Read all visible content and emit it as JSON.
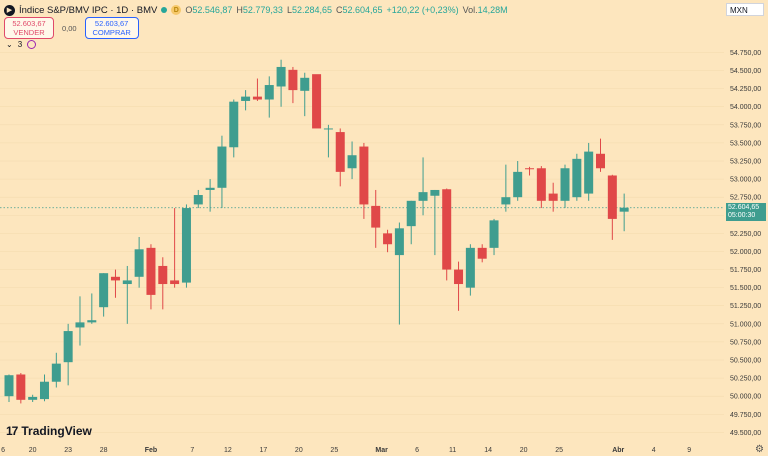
{
  "header": {
    "logo_glyph": "▶",
    "title": "Índice S&P/BMV IPC · 1D · BMV",
    "d_badge": "D",
    "ohlc": [
      {
        "label": "O",
        "value": "52.546,87"
      },
      {
        "label": "H",
        "value": "52.779,33"
      },
      {
        "label": "L",
        "value": "52.284,65"
      },
      {
        "label": "C",
        "value": "52.604,65"
      }
    ],
    "change": "+120,22 (+0,23%)",
    "volume_label": "Vol.",
    "volume_value": "14,28M"
  },
  "trade": {
    "sell_price": "52.603,67",
    "sell_label": "VENDER",
    "spread": "0,00",
    "buy_price": "52.603,67",
    "buy_label": "COMPRAR"
  },
  "indicators": {
    "chevron": "⌄",
    "count": "3"
  },
  "currency": "MXN",
  "branding": {
    "mark": "17",
    "name": "TradingView"
  },
  "settings_icon": "⚙",
  "colors": {
    "up": "#3f9d8f",
    "down": "#e04848",
    "background": "#fde6be",
    "last_price": "#3f9d8f"
  },
  "chart_data": {
    "type": "candlestick",
    "y_axis_labels": [
      "54.750,00",
      "54.500,00",
      "54.250,00",
      "54.000,00",
      "53.750,00",
      "53.500,00",
      "53.250,00",
      "53.000,00",
      "52.750,00",
      "52.500,00",
      "52.250,00",
      "52.000,00",
      "51.750,00",
      "51.500,00",
      "51.250,00",
      "51.000,00",
      "50.750,00",
      "50.500,00",
      "50.250,00",
      "50.000,00",
      "49.750,00",
      "49.500,00"
    ],
    "ylim": [
      49450,
      54950
    ],
    "x_tick_labels": [
      {
        "label": "6",
        "pos": -0.5
      },
      {
        "label": "20",
        "pos": 2
      },
      {
        "label": "23",
        "pos": 5
      },
      {
        "label": "28",
        "pos": 8
      },
      {
        "label": "Feb",
        "pos": 12
      },
      {
        "label": "7",
        "pos": 15.5
      },
      {
        "label": "12",
        "pos": 18.5
      },
      {
        "label": "17",
        "pos": 21.5
      },
      {
        "label": "20",
        "pos": 24.5
      },
      {
        "label": "25",
        "pos": 27.5
      },
      {
        "label": "Mar",
        "pos": 31.5
      },
      {
        "label": "6",
        "pos": 34.5
      },
      {
        "label": "11",
        "pos": 37.5
      },
      {
        "label": "14",
        "pos": 40.5
      },
      {
        "label": "20",
        "pos": 43.5
      },
      {
        "label": "25",
        "pos": 46.5
      },
      {
        "label": "Abr",
        "pos": 51.5
      },
      {
        "label": "4",
        "pos": 54.5
      },
      {
        "label": "9",
        "pos": 57.5
      }
    ],
    "last_price": {
      "value": 52604.65,
      "label": "52.604,65",
      "countdown": "05:00:30"
    },
    "candles": [
      {
        "o": 50000,
        "h": 50300,
        "l": 49920,
        "c": 50290
      },
      {
        "o": 50300,
        "h": 50320,
        "l": 49900,
        "c": 49950
      },
      {
        "o": 49950,
        "h": 50020,
        "l": 49920,
        "c": 49990
      },
      {
        "o": 49960,
        "h": 50300,
        "l": 49930,
        "c": 50200
      },
      {
        "o": 50200,
        "h": 50600,
        "l": 50120,
        "c": 50450
      },
      {
        "o": 50470,
        "h": 51000,
        "l": 50150,
        "c": 50900
      },
      {
        "o": 50950,
        "h": 51380,
        "l": 50700,
        "c": 51020
      },
      {
        "o": 51020,
        "h": 51420,
        "l": 51000,
        "c": 51050
      },
      {
        "o": 51230,
        "h": 51700,
        "l": 51100,
        "c": 51700
      },
      {
        "o": 51650,
        "h": 51750,
        "l": 51360,
        "c": 51600
      },
      {
        "o": 51550,
        "h": 51800,
        "l": 51000,
        "c": 51600
      },
      {
        "o": 51650,
        "h": 52200,
        "l": 51500,
        "c": 52030
      },
      {
        "o": 52050,
        "h": 52100,
        "l": 51200,
        "c": 51400
      },
      {
        "o": 51800,
        "h": 51920,
        "l": 51200,
        "c": 51550
      },
      {
        "o": 51600,
        "h": 52600,
        "l": 51500,
        "c": 51550
      },
      {
        "o": 51570,
        "h": 52650,
        "l": 51500,
        "c": 52600
      },
      {
        "o": 52650,
        "h": 52850,
        "l": 52600,
        "c": 52780
      },
      {
        "o": 52850,
        "h": 53000,
        "l": 52550,
        "c": 52880
      },
      {
        "o": 52880,
        "h": 53600,
        "l": 52600,
        "c": 53450
      },
      {
        "o": 53440,
        "h": 54100,
        "l": 53300,
        "c": 54070
      },
      {
        "o": 54080,
        "h": 54230,
        "l": 53950,
        "c": 54140
      },
      {
        "o": 54140,
        "h": 54390,
        "l": 54080,
        "c": 54100
      },
      {
        "o": 54100,
        "h": 54420,
        "l": 53850,
        "c": 54300
      },
      {
        "o": 54280,
        "h": 54650,
        "l": 54000,
        "c": 54550
      },
      {
        "o": 54510,
        "h": 54550,
        "l": 54050,
        "c": 54230
      },
      {
        "o": 54220,
        "h": 54470,
        "l": 53870,
        "c": 54400
      },
      {
        "o": 54450,
        "h": 54400,
        "l": 53750,
        "c": 53700
      },
      {
        "o": 53700,
        "h": 53750,
        "l": 53300,
        "c": 53700
      },
      {
        "o": 53650,
        "h": 53700,
        "l": 52900,
        "c": 53100
      },
      {
        "o": 53150,
        "h": 53520,
        "l": 53000,
        "c": 53330
      },
      {
        "o": 53450,
        "h": 53500,
        "l": 52450,
        "c": 52650
      },
      {
        "o": 52630,
        "h": 52850,
        "l": 52050,
        "c": 52330
      },
      {
        "o": 52250,
        "h": 52300,
        "l": 51990,
        "c": 52100
      },
      {
        "o": 51950,
        "h": 52400,
        "l": 50990,
        "c": 52320
      },
      {
        "o": 52350,
        "h": 52700,
        "l": 52100,
        "c": 52700
      },
      {
        "o": 52700,
        "h": 53300,
        "l": 52500,
        "c": 52820
      },
      {
        "o": 52770,
        "h": 52850,
        "l": 51950,
        "c": 52850
      },
      {
        "o": 52860,
        "h": 52870,
        "l": 51600,
        "c": 51750
      },
      {
        "o": 51750,
        "h": 51860,
        "l": 51180,
        "c": 51550
      },
      {
        "o": 51500,
        "h": 52100,
        "l": 51390,
        "c": 52050
      },
      {
        "o": 52050,
        "h": 52100,
        "l": 51850,
        "c": 51900
      },
      {
        "o": 52050,
        "h": 52450,
        "l": 51950,
        "c": 52430
      },
      {
        "o": 52650,
        "h": 53200,
        "l": 52550,
        "c": 52750
      },
      {
        "o": 52750,
        "h": 53250,
        "l": 52700,
        "c": 53100
      },
      {
        "o": 53150,
        "h": 53170,
        "l": 53050,
        "c": 53140
      },
      {
        "o": 53150,
        "h": 53180,
        "l": 52600,
        "c": 52700
      },
      {
        "o": 52800,
        "h": 52950,
        "l": 52550,
        "c": 52700
      },
      {
        "o": 52700,
        "h": 53200,
        "l": 52600,
        "c": 53150
      },
      {
        "o": 52750,
        "h": 53350,
        "l": 52700,
        "c": 53280
      },
      {
        "o": 52800,
        "h": 53500,
        "l": 52700,
        "c": 53380
      },
      {
        "o": 53350,
        "h": 53560,
        "l": 53100,
        "c": 53150
      },
      {
        "o": 53050,
        "h": 53060,
        "l": 52160,
        "c": 52450
      },
      {
        "o": 52550,
        "h": 52800,
        "l": 52280,
        "c": 52605
      }
    ]
  }
}
